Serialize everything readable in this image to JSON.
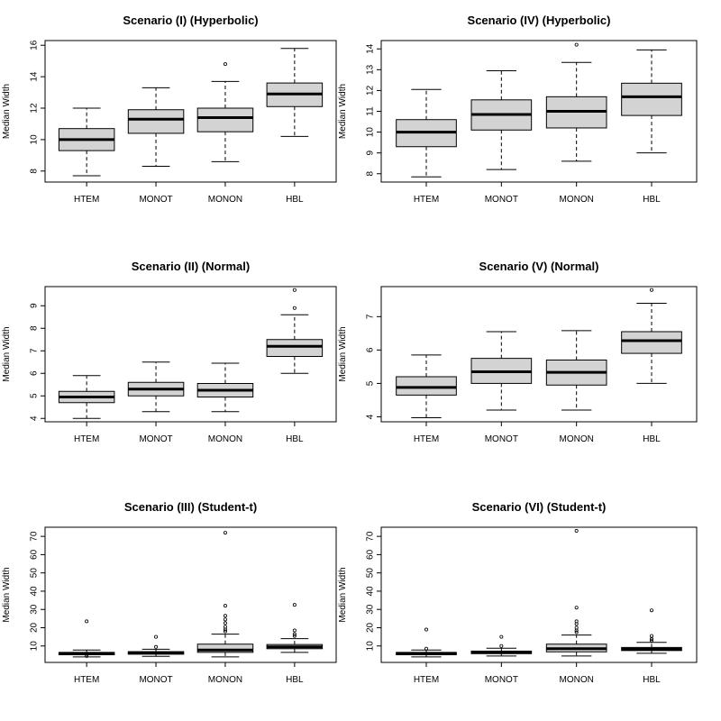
{
  "chart_data": [
    {
      "type": "boxplot",
      "title": "Scenario (I) (Hyperbolic)",
      "ylabel": "Median Width",
      "categories": [
        "HTEM",
        "MONOT",
        "MONON",
        "HBL"
      ],
      "ylim": [
        7.3,
        16.3
      ],
      "yticks": [
        8,
        10,
        12,
        14,
        16
      ],
      "boxes": [
        {
          "min": 7.7,
          "q1": 9.3,
          "median": 10.0,
          "q3": 10.7,
          "max": 12.0,
          "outliers": []
        },
        {
          "min": 8.3,
          "q1": 10.4,
          "median": 11.3,
          "q3": 11.9,
          "max": 13.3,
          "outliers": []
        },
        {
          "min": 8.6,
          "q1": 10.5,
          "median": 11.4,
          "q3": 12.0,
          "max": 13.7,
          "outliers": [
            14.8
          ]
        },
        {
          "min": 10.2,
          "q1": 12.1,
          "median": 12.9,
          "q3": 13.6,
          "max": 15.8,
          "outliers": []
        }
      ]
    },
    {
      "type": "boxplot",
      "title": "Scenario (IV) (Hyperbolic)",
      "ylabel": "Median Width",
      "categories": [
        "HTEM",
        "MONOT",
        "MONON",
        "HBL"
      ],
      "ylim": [
        7.6,
        14.4
      ],
      "yticks": [
        8,
        9,
        10,
        11,
        12,
        13,
        14
      ],
      "boxes": [
        {
          "min": 7.85,
          "q1": 9.3,
          "median": 10.0,
          "q3": 10.6,
          "max": 12.05,
          "outliers": []
        },
        {
          "min": 8.2,
          "q1": 10.1,
          "median": 10.85,
          "q3": 11.55,
          "max": 12.95,
          "outliers": []
        },
        {
          "min": 8.6,
          "q1": 10.2,
          "median": 11.0,
          "q3": 11.7,
          "max": 13.35,
          "outliers": [
            14.2
          ]
        },
        {
          "min": 9.0,
          "q1": 10.8,
          "median": 11.7,
          "q3": 12.35,
          "max": 13.95,
          "outliers": []
        }
      ]
    },
    {
      "type": "boxplot",
      "title": "Scenario (II) (Normal)",
      "ylabel": "Median Width",
      "categories": [
        "HTEM",
        "MONOT",
        "MONON",
        "HBL"
      ],
      "ylim": [
        3.85,
        9.85
      ],
      "yticks": [
        4,
        5,
        6,
        7,
        8,
        9
      ],
      "boxes": [
        {
          "min": 4.0,
          "q1": 4.7,
          "median": 4.95,
          "q3": 5.2,
          "max": 5.9,
          "outliers": []
        },
        {
          "min": 4.3,
          "q1": 5.0,
          "median": 5.3,
          "q3": 5.6,
          "max": 6.5,
          "outliers": []
        },
        {
          "min": 4.3,
          "q1": 4.95,
          "median": 5.25,
          "q3": 5.55,
          "max": 6.45,
          "outliers": []
        },
        {
          "min": 6.0,
          "q1": 6.75,
          "median": 7.2,
          "q3": 7.5,
          "max": 8.6,
          "outliers": [
            8.9,
            9.7
          ]
        }
      ]
    },
    {
      "type": "boxplot",
      "title": "Scenario (V) (Normal)",
      "ylabel": "Median Width",
      "categories": [
        "HTEM",
        "MONOT",
        "MONON",
        "HBL"
      ],
      "ylim": [
        3.85,
        7.9
      ],
      "yticks": [
        4,
        5,
        6,
        7
      ],
      "boxes": [
        {
          "min": 3.97,
          "q1": 4.65,
          "median": 4.88,
          "q3": 5.2,
          "max": 5.85,
          "outliers": []
        },
        {
          "min": 4.2,
          "q1": 5.0,
          "median": 5.35,
          "q3": 5.75,
          "max": 6.55,
          "outliers": []
        },
        {
          "min": 4.2,
          "q1": 4.95,
          "median": 5.33,
          "q3": 5.7,
          "max": 6.58,
          "outliers": []
        },
        {
          "min": 5.0,
          "q1": 5.9,
          "median": 6.28,
          "q3": 6.55,
          "max": 7.4,
          "outliers": [
            7.8
          ]
        }
      ]
    },
    {
      "type": "boxplot",
      "title": "Scenario (III) (Student-t)",
      "ylabel": "Median Width",
      "categories": [
        "HTEM",
        "MONOT",
        "MONON",
        "HBL"
      ],
      "ylim": [
        1,
        75
      ],
      "yticks": [
        10,
        20,
        30,
        40,
        50,
        60,
        70
      ],
      "boxes": [
        {
          "min": 4.0,
          "q1": 5.2,
          "median": 5.8,
          "q3": 6.5,
          "max": 7.8,
          "outliers": [
            23.5,
            4.5
          ]
        },
        {
          "min": 4.3,
          "q1": 5.5,
          "median": 6.2,
          "q3": 6.9,
          "max": 8.2,
          "outliers": [
            15.0,
            9.5
          ]
        },
        {
          "min": 4.0,
          "q1": 6.5,
          "median": 7.8,
          "q3": 11.0,
          "max": 16.5,
          "outliers": [
            72.0,
            32.0,
            26.5,
            24.5,
            22.5,
            20.5,
            19.0,
            18.0
          ]
        },
        {
          "min": 6.5,
          "q1": 8.5,
          "median": 9.5,
          "q3": 10.8,
          "max": 14.0,
          "outliers": [
            32.5,
            18.5,
            16.5,
            15.5
          ]
        }
      ]
    },
    {
      "type": "boxplot",
      "title": "Scenario (VI) (Student-t)",
      "ylabel": "Median Width",
      "categories": [
        "HTEM",
        "MONOT",
        "MONON",
        "HBL"
      ],
      "ylim": [
        1,
        75
      ],
      "yticks": [
        10,
        20,
        30,
        40,
        50,
        60,
        70
      ],
      "boxes": [
        {
          "min": 4.0,
          "q1": 5.2,
          "median": 5.8,
          "q3": 6.5,
          "max": 7.8,
          "outliers": [
            19.0,
            8.5
          ]
        },
        {
          "min": 4.5,
          "q1": 5.8,
          "median": 6.5,
          "q3": 7.2,
          "max": 8.8,
          "outliers": [
            15.0,
            10.0
          ]
        },
        {
          "min": 4.5,
          "q1": 6.8,
          "median": 8.5,
          "q3": 11.0,
          "max": 16.0,
          "outliers": [
            73.0,
            31.0,
            23.5,
            22.0,
            20.0,
            18.5,
            17.5
          ]
        },
        {
          "min": 6.0,
          "q1": 7.5,
          "median": 8.3,
          "q3": 9.2,
          "max": 12.0,
          "outliers": [
            29.5,
            15.5,
            13.8,
            13.0
          ]
        }
      ]
    }
  ]
}
